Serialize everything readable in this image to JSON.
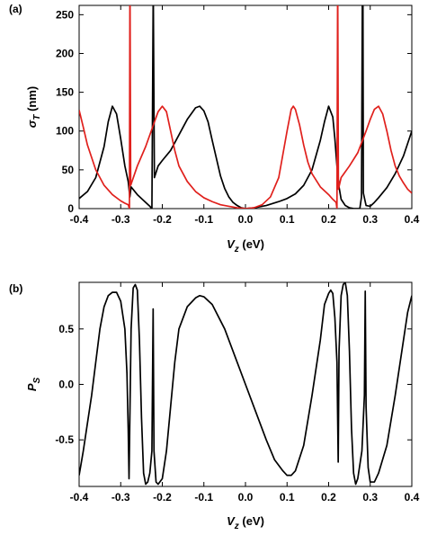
{
  "chart_data": [
    {
      "type": "line",
      "panel_label": "(a)",
      "xlabel_main": "V",
      "xlabel_sub": "z",
      "xlabel_unit": " (eV)",
      "ylabel_main": "σ",
      "ylabel_sub": "T",
      "ylabel_unit": " (nm)",
      "xlim": [
        -0.4,
        0.4
      ],
      "ylim": [
        0,
        262
      ],
      "xticks": [
        -0.4,
        -0.3,
        -0.2,
        -0.1,
        0.0,
        0.1,
        0.2,
        0.3,
        0.4
      ],
      "xtick_labels": [
        "-0.4",
        "-0.3",
        "-0.2",
        "-0.1",
        "0.0",
        "0.1",
        "0.2",
        "0.3",
        "0.4"
      ],
      "yticks": [
        0,
        50,
        100,
        150,
        200,
        250
      ],
      "ytick_labels": [
        "0",
        "50",
        "100",
        "150",
        "200",
        "250"
      ],
      "series": [
        {
          "color": "#000000",
          "points": [
            [
              -0.4,
              13
            ],
            [
              -0.38,
              22
            ],
            [
              -0.36,
              40
            ],
            [
              -0.34,
              80
            ],
            [
              -0.33,
              112
            ],
            [
              -0.32,
              132
            ],
            [
              -0.31,
              122
            ],
            [
              -0.3,
              90
            ],
            [
              -0.29,
              55
            ],
            [
              -0.282,
              35
            ],
            [
              -0.278,
              15
            ],
            [
              -0.275,
              28
            ],
            [
              -0.26,
              18
            ],
            [
              -0.24,
              8
            ],
            [
              -0.23,
              3
            ],
            [
              -0.225,
              0
            ],
            [
              -0.222,
              262
            ],
            [
              -0.2215,
              262
            ],
            [
              -0.219,
              40
            ],
            [
              -0.21,
              55
            ],
            [
              -0.2,
              62
            ],
            [
              -0.18,
              75
            ],
            [
              -0.16,
              95
            ],
            [
              -0.14,
              115
            ],
            [
              -0.12,
              130
            ],
            [
              -0.11,
              132
            ],
            [
              -0.1,
              126
            ],
            [
              -0.09,
              112
            ],
            [
              -0.08,
              88
            ],
            [
              -0.07,
              65
            ],
            [
              -0.06,
              42
            ],
            [
              -0.05,
              26
            ],
            [
              -0.04,
              15
            ],
            [
              -0.03,
              8
            ],
            [
              -0.02,
              4
            ],
            [
              -0.01,
              1
            ],
            [
              0.0,
              0
            ],
            [
              0.02,
              1
            ],
            [
              0.05,
              4
            ],
            [
              0.08,
              9
            ],
            [
              0.1,
              13
            ],
            [
              0.12,
              19
            ],
            [
              0.14,
              30
            ],
            [
              0.16,
              50
            ],
            [
              0.18,
              88
            ],
            [
              0.19,
              112
            ],
            [
              0.2,
              132
            ],
            [
              0.21,
              118
            ],
            [
              0.215,
              90
            ],
            [
              0.22,
              55
            ],
            [
              0.225,
              28
            ],
            [
              0.23,
              12
            ],
            [
              0.24,
              4
            ],
            [
              0.25,
              1
            ],
            [
              0.26,
              0
            ],
            [
              0.275,
              0
            ],
            [
              0.279,
              15
            ],
            [
              0.281,
              262
            ],
            [
              0.2825,
              262
            ],
            [
              0.2835,
              20
            ],
            [
              0.29,
              4
            ],
            [
              0.3,
              3
            ],
            [
              0.31,
              8
            ],
            [
              0.32,
              14
            ],
            [
              0.34,
              27
            ],
            [
              0.36,
              45
            ],
            [
              0.38,
              68
            ],
            [
              0.4,
              100
            ]
          ]
        },
        {
          "color": "#e0201c",
          "points": [
            [
              -0.4,
              127
            ],
            [
              -0.39,
              105
            ],
            [
              -0.38,
              82
            ],
            [
              -0.36,
              50
            ],
            [
              -0.34,
              30
            ],
            [
              -0.32,
              18
            ],
            [
              -0.3,
              10
            ],
            [
              -0.29,
              7
            ],
            [
              -0.282,
              5
            ],
            [
              -0.279,
              0
            ],
            [
              -0.278,
              262
            ],
            [
              -0.2775,
              262
            ],
            [
              -0.276,
              30
            ],
            [
              -0.26,
              55
            ],
            [
              -0.24,
              80
            ],
            [
              -0.22,
              110
            ],
            [
              -0.21,
              125
            ],
            [
              -0.2,
              132
            ],
            [
              -0.19,
              125
            ],
            [
              -0.18,
              100
            ],
            [
              -0.17,
              75
            ],
            [
              -0.16,
              55
            ],
            [
              -0.14,
              35
            ],
            [
              -0.12,
              22
            ],
            [
              -0.1,
              14
            ],
            [
              -0.08,
              9
            ],
            [
              -0.06,
              5
            ],
            [
              -0.04,
              3
            ],
            [
              -0.02,
              1
            ],
            [
              0.0,
              0
            ],
            [
              0.02,
              1
            ],
            [
              0.04,
              5
            ],
            [
              0.06,
              15
            ],
            [
              0.08,
              40
            ],
            [
              0.1,
              100
            ],
            [
              0.11,
              128
            ],
            [
              0.115,
              132
            ],
            [
              0.12,
              128
            ],
            [
              0.13,
              108
            ],
            [
              0.14,
              82
            ],
            [
              0.15,
              60
            ],
            [
              0.16,
              45
            ],
            [
              0.18,
              28
            ],
            [
              0.2,
              18
            ],
            [
              0.21,
              12
            ],
            [
              0.218,
              8
            ],
            [
              0.22,
              0
            ],
            [
              0.2215,
              262
            ],
            [
              0.222,
              262
            ],
            [
              0.2235,
              25
            ],
            [
              0.23,
              40
            ],
            [
              0.25,
              55
            ],
            [
              0.27,
              72
            ],
            [
              0.29,
              100
            ],
            [
              0.3,
              115
            ],
            [
              0.31,
              128
            ],
            [
              0.32,
              132
            ],
            [
              0.33,
              122
            ],
            [
              0.34,
              100
            ],
            [
              0.35,
              75
            ],
            [
              0.36,
              55
            ],
            [
              0.37,
              42
            ],
            [
              0.38,
              33
            ],
            [
              0.39,
              25
            ],
            [
              0.4,
              20
            ]
          ]
        }
      ]
    },
    {
      "type": "line",
      "panel_label": "(b)",
      "xlabel_main": "V",
      "xlabel_sub": "z",
      "xlabel_unit": " (eV)",
      "ylabel_main": "P",
      "ylabel_sub": "S",
      "ylabel_unit": "",
      "xlim": [
        -0.4,
        0.4
      ],
      "ylim": [
        -0.92,
        0.92
      ],
      "xticks": [
        -0.4,
        -0.3,
        -0.2,
        -0.1,
        0.0,
        0.1,
        0.2,
        0.3,
        0.4
      ],
      "xtick_labels": [
        "-0.4",
        "-0.3",
        "-0.2",
        "-0.1",
        "0.0",
        "0.1",
        "0.2",
        "0.3",
        "0.4"
      ],
      "yticks": [
        -0.5,
        0.0,
        0.5
      ],
      "ytick_labels": [
        "-0.5",
        "0.0",
        "0.5"
      ],
      "series": [
        {
          "color": "#000000",
          "points": [
            [
              -0.4,
              -0.82
            ],
            [
              -0.39,
              -0.6
            ],
            [
              -0.38,
              -0.35
            ],
            [
              -0.37,
              -0.1
            ],
            [
              -0.36,
              0.2
            ],
            [
              -0.35,
              0.5
            ],
            [
              -0.34,
              0.7
            ],
            [
              -0.33,
              0.8
            ],
            [
              -0.32,
              0.83
            ],
            [
              -0.31,
              0.83
            ],
            [
              -0.3,
              0.75
            ],
            [
              -0.29,
              0.5
            ],
            [
              -0.285,
              0.1
            ],
            [
              -0.282,
              -0.4
            ],
            [
              -0.28,
              -0.85
            ],
            [
              -0.278,
              -0.3
            ],
            [
              -0.275,
              0.5
            ],
            [
              -0.27,
              0.87
            ],
            [
              -0.265,
              0.9
            ],
            [
              -0.26,
              0.85
            ],
            [
              -0.255,
              0.4
            ],
            [
              -0.25,
              -0.3
            ],
            [
              -0.245,
              -0.8
            ],
            [
              -0.24,
              -0.9
            ],
            [
              -0.235,
              -0.88
            ],
            [
              -0.23,
              -0.8
            ],
            [
              -0.225,
              -0.6
            ],
            [
              -0.222,
              0.68
            ],
            [
              -0.22,
              -0.6
            ],
            [
              -0.215,
              -0.88
            ],
            [
              -0.21,
              -0.9
            ],
            [
              -0.2,
              -0.85
            ],
            [
              -0.19,
              -0.6
            ],
            [
              -0.18,
              -0.2
            ],
            [
              -0.17,
              0.2
            ],
            [
              -0.16,
              0.5
            ],
            [
              -0.14,
              0.7
            ],
            [
              -0.12,
              0.78
            ],
            [
              -0.11,
              0.8
            ],
            [
              -0.1,
              0.79
            ],
            [
              -0.08,
              0.72
            ],
            [
              -0.05,
              0.5
            ],
            [
              -0.02,
              0.2
            ],
            [
              0.0,
              0.0
            ],
            [
              0.02,
              -0.2
            ],
            [
              0.05,
              -0.5
            ],
            [
              0.07,
              -0.68
            ],
            [
              0.09,
              -0.78
            ],
            [
              0.1,
              -0.82
            ],
            [
              0.11,
              -0.82
            ],
            [
              0.12,
              -0.78
            ],
            [
              0.14,
              -0.55
            ],
            [
              0.16,
              -0.1
            ],
            [
              0.18,
              0.4
            ],
            [
              0.19,
              0.72
            ],
            [
              0.2,
              0.82
            ],
            [
              0.205,
              0.85
            ],
            [
              0.21,
              0.82
            ],
            [
              0.215,
              0.6
            ],
            [
              0.22,
              0.2
            ],
            [
              0.223,
              -0.7
            ],
            [
              0.225,
              0.3
            ],
            [
              0.23,
              0.8
            ],
            [
              0.235,
              0.9
            ],
            [
              0.24,
              0.92
            ],
            [
              0.245,
              0.8
            ],
            [
              0.25,
              0.3
            ],
            [
              0.255,
              -0.4
            ],
            [
              0.26,
              -0.8
            ],
            [
              0.265,
              -0.9
            ],
            [
              0.27,
              -0.85
            ],
            [
              0.28,
              -0.6
            ],
            [
              0.286,
              -0.1
            ],
            [
              0.288,
              0.84
            ],
            [
              0.29,
              -0.2
            ],
            [
              0.295,
              -0.75
            ],
            [
              0.3,
              -0.88
            ],
            [
              0.31,
              -0.88
            ],
            [
              0.32,
              -0.8
            ],
            [
              0.34,
              -0.55
            ],
            [
              0.36,
              -0.1
            ],
            [
              0.38,
              0.4
            ],
            [
              0.39,
              0.65
            ],
            [
              0.4,
              0.8
            ]
          ]
        }
      ]
    }
  ]
}
